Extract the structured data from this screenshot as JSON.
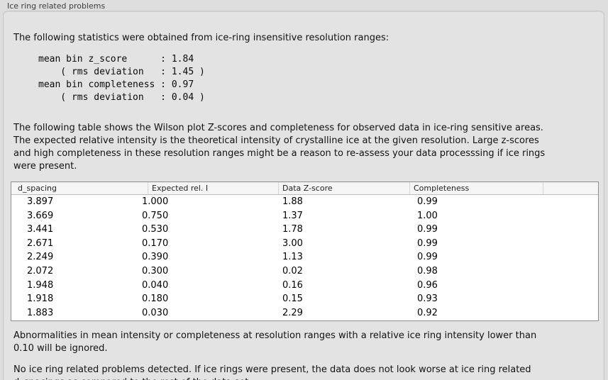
{
  "panel": {
    "title": "Ice ring related problems"
  },
  "colors": {
    "page_bg": "#dedede",
    "panel_bg": "#e3e3e3",
    "table_border": "#8f8f8f",
    "table_header_bg": "#f5f5f5"
  },
  "sections": {
    "intro": "The following statistics were obtained from ice-ring insensitive resolution ranges:",
    "stats_block": "mean bin z_score      : 1.84\n    ( rms deviation   : 1.45 )\nmean bin completeness : 0.97\n    ( rms deviation   : 0.04 )",
    "description": "The following table shows the Wilson plot Z-scores and completeness for observed data in ice-ring sensitive areas.\nThe expected relative intensity is the theoretical intensity of crystalline ice at the given resolution. Large z-scores\nand high completeness in these resolution ranges might be a reason to re-assess your data processsing if ice rings\nwere present.",
    "ignore_note": "Abnormalities in mean intensity or completeness at resolution ranges with a relative ice ring intensity lower than\n0.10 will be ignored.",
    "conclusion": "No ice ring related problems detected. If ice rings were present, the data does not look worse at ice ring related\nd_spacings as compared to the rest of the data set."
  },
  "stats": {
    "mean_bin_z_score": "1.84",
    "z_score_rms_deviation": "1.45",
    "mean_bin_completeness": "0.97",
    "completeness_rms_deviation": "0.04"
  },
  "table": {
    "headers": [
      "d_spacing",
      "Expected rel. I",
      "Data Z-score",
      "Completeness"
    ],
    "rows": [
      [
        "3.897",
        "1.000",
        "1.88",
        "0.99"
      ],
      [
        "3.669",
        "0.750",
        "1.37",
        "1.00"
      ],
      [
        "3.441",
        "0.530",
        "1.78",
        "0.99"
      ],
      [
        "2.671",
        "0.170",
        "3.00",
        "0.99"
      ],
      [
        "2.249",
        "0.390",
        "1.13",
        "0.99"
      ],
      [
        "2.072",
        "0.300",
        "0.02",
        "0.98"
      ],
      [
        "1.948",
        "0.040",
        "0.16",
        "0.96"
      ],
      [
        "1.918",
        "0.180",
        "0.15",
        "0.93"
      ],
      [
        "1.883",
        "0.030",
        "2.29",
        "0.92"
      ]
    ]
  }
}
